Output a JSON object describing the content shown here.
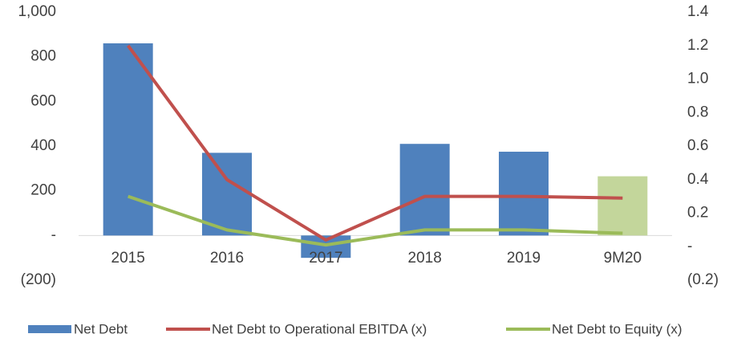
{
  "chart_data": {
    "type": "bar",
    "categories": [
      "2015",
      "2016",
      "2017",
      "2018",
      "2019",
      "9M20"
    ],
    "series": [
      {
        "name": "Net Debt",
        "type": "bar",
        "color": "#4f81bd",
        "colors": [
          "#4f81bd",
          "#4f81bd",
          "#4f81bd",
          "#4f81bd",
          "#4f81bd",
          "#c3d69b"
        ],
        "values": [
          860,
          370,
          -100,
          410,
          375,
          265
        ]
      },
      {
        "name": "Net Debt to Operational EBITDA (x)",
        "type": "line",
        "axis": "y2",
        "color": "#c0504d",
        "values": [
          1.2,
          0.4,
          0.04,
          0.3,
          0.3,
          0.29
        ]
      },
      {
        "name": "Net Debt to Equity (x)",
        "type": "line",
        "axis": "y2",
        "color": "#9bbb59",
        "values": [
          0.3,
          0.1,
          0.01,
          0.1,
          0.1,
          0.08
        ]
      }
    ],
    "ylim": [
      -200,
      1000
    ],
    "yticks": [
      {
        "value": -200,
        "label": "(200)"
      },
      {
        "value": 0,
        "label": "-"
      },
      200,
      400,
      600,
      800,
      {
        "value": 1000,
        "label": "1,000"
      }
    ],
    "y2lim": [
      -0.2,
      1.4
    ],
    "y2ticks": [
      {
        "value": -0.2,
        "label": "(0.2)"
      },
      {
        "value": 0,
        "label": "-"
      },
      0.2,
      0.4,
      0.6,
      0.8,
      {
        "value": 1.0,
        "label": "1.0"
      },
      1.2,
      1.4
    ],
    "legend": "bottom"
  }
}
